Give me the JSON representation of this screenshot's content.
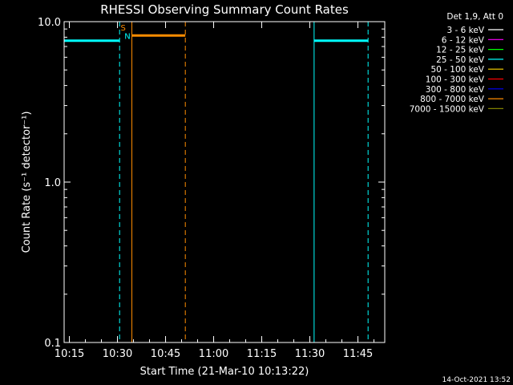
{
  "chart_data": {
    "type": "line",
    "title": "RHESSI Observing Summary Count Rates",
    "xlabel": "Start Time (21-Mar-10 10:13:22)",
    "ylabel": "Count Rate (s⁻¹ detector⁻¹)",
    "x_start": "10:13:22",
    "xlim": [
      "10:13:22",
      "11:53:22"
    ],
    "x_ticks": [
      "10:15",
      "10:30",
      "10:45",
      "11:00",
      "11:15",
      "11:30",
      "11:45"
    ],
    "ylim": [
      0.1,
      10.0
    ],
    "y_scale": "log",
    "y_ticks": [
      {
        "value": 10.0,
        "label": "10.0"
      },
      {
        "value": 1.0,
        "label": "1.0"
      },
      {
        "value": 0.1,
        "label": "0.1"
      }
    ],
    "legend_header": "Det 1,9, Att 0",
    "legend_position": "right",
    "series": [
      {
        "name": "3 - 6 keV",
        "color": "#ffffff",
        "segments": []
      },
      {
        "name": "6 - 12 keV",
        "color": "#ff00ff",
        "segments": []
      },
      {
        "name": "12 - 25 keV",
        "color": "#00ff00",
        "segments": []
      },
      {
        "name": "25 - 50 keV",
        "color": "#00ffff",
        "segments": [
          {
            "x": [
              "10:13:22",
              "10:30:40"
            ],
            "y": [
              7.6,
              7.6
            ]
          },
          {
            "x": [
              "11:31:20",
              "11:48:10"
            ],
            "y": [
              7.6,
              7.6
            ]
          }
        ]
      },
      {
        "name": "50 - 100 keV",
        "color": "#ffd700",
        "segments": []
      },
      {
        "name": "100 - 300 keV",
        "color": "#ff0000",
        "segments": []
      },
      {
        "name": "300 - 800 keV",
        "color": "#0000ff",
        "segments": []
      },
      {
        "name": "800 - 7000 keV",
        "color": "#ff8c00",
        "segments": [
          {
            "x": [
              "10:34:30",
              "10:51:10"
            ],
            "y": [
              8.2,
              8.2
            ]
          }
        ]
      },
      {
        "name": "7000 - 15000 keV",
        "color": "#808000",
        "segments": []
      }
    ],
    "vertical_lines": [
      {
        "x": "10:13:22",
        "color": "#00ffff",
        "style": "solid"
      },
      {
        "x": "10:30:40",
        "color": "#00ffff",
        "style": "dashed"
      },
      {
        "x": "10:34:30",
        "color": "#ff8c00",
        "style": "solid"
      },
      {
        "x": "10:51:10",
        "color": "#ff8c00",
        "style": "dashed"
      },
      {
        "x": "11:31:20",
        "color": "#00ffff",
        "style": "solid"
      },
      {
        "x": "11:48:10",
        "color": "#00ffff",
        "style": "dashed"
      }
    ],
    "annotations": [
      {
        "text": "S",
        "x": "10:31:00",
        "y": 8.8,
        "color": "#ff8c00"
      },
      {
        "text": "N",
        "x": "10:32:10",
        "y": 7.8,
        "color": "#00ffff"
      }
    ],
    "grid": false
  },
  "footer_timestamp": "14-Oct-2021 13:52"
}
